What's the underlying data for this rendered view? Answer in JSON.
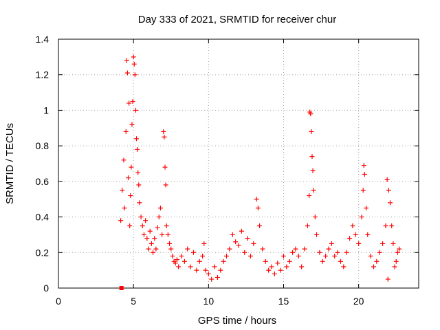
{
  "chart_data": {
    "type": "scatter",
    "title": "Day 333 of 2021, SRMTID for receiver chur",
    "xlabel": "GPS time / hours",
    "ylabel": "SRMTID / TECUs",
    "xlim": [
      0,
      24
    ],
    "ylim": [
      0,
      1.4
    ],
    "x_ticks": [
      0,
      5,
      10,
      15,
      20
    ],
    "x_tick_labels": [
      "0",
      "5",
      "10",
      "15",
      "20"
    ],
    "y_ticks": [
      0,
      0.2,
      0.4,
      0.6,
      0.8,
      1,
      1.2,
      1.4
    ],
    "y_tick_labels": [
      "0",
      "0.2",
      "0.4",
      "0.6",
      "0.8",
      "1",
      "1.2",
      "1.4"
    ],
    "grid": true,
    "marker": "+",
    "color": "#ff0000",
    "outlier": {
      "x": 4.2,
      "y": 0.0
    },
    "series": [
      {
        "name": "SRMTID",
        "points": [
          [
            4.15,
            0.38
          ],
          [
            4.25,
            0.55
          ],
          [
            4.35,
            0.72
          ],
          [
            4.4,
            0.45
          ],
          [
            4.5,
            0.88
          ],
          [
            4.55,
            1.28
          ],
          [
            4.6,
            1.21
          ],
          [
            4.65,
            0.62
          ],
          [
            4.7,
            1.04
          ],
          [
            4.75,
            0.35
          ],
          [
            4.8,
            0.52
          ],
          [
            4.85,
            0.68
          ],
          [
            4.9,
            0.92
          ],
          [
            4.95,
            1.05
          ],
          [
            5.0,
            1.3
          ],
          [
            5.05,
            1.26
          ],
          [
            5.1,
            1.2
          ],
          [
            5.15,
            1.0
          ],
          [
            5.2,
            0.84
          ],
          [
            5.25,
            0.78
          ],
          [
            5.3,
            0.65
          ],
          [
            5.35,
            0.58
          ],
          [
            5.4,
            0.48
          ],
          [
            5.5,
            0.4
          ],
          [
            5.6,
            0.35
          ],
          [
            5.7,
            0.3
          ],
          [
            5.8,
            0.38
          ],
          [
            5.9,
            0.28
          ],
          [
            6.0,
            0.22
          ],
          [
            6.1,
            0.32
          ],
          [
            6.2,
            0.25
          ],
          [
            6.3,
            0.2
          ],
          [
            6.4,
            0.28
          ],
          [
            6.5,
            0.22
          ],
          [
            6.6,
            0.34
          ],
          [
            6.7,
            0.4
          ],
          [
            6.8,
            0.45
          ],
          [
            6.9,
            0.3
          ],
          [
            7.0,
            0.88
          ],
          [
            7.05,
            0.85
          ],
          [
            7.1,
            0.68
          ],
          [
            7.15,
            0.58
          ],
          [
            7.2,
            0.35
          ],
          [
            7.3,
            0.3
          ],
          [
            7.4,
            0.25
          ],
          [
            7.5,
            0.22
          ],
          [
            7.6,
            0.18
          ],
          [
            7.7,
            0.15
          ],
          [
            7.8,
            0.14
          ],
          [
            7.9,
            0.16
          ],
          [
            8.0,
            0.12
          ],
          [
            8.2,
            0.18
          ],
          [
            8.4,
            0.15
          ],
          [
            8.6,
            0.22
          ],
          [
            8.8,
            0.12
          ],
          [
            9.0,
            0.2
          ],
          [
            9.2,
            0.1
          ],
          [
            9.4,
            0.15
          ],
          [
            9.6,
            0.18
          ],
          [
            9.7,
            0.25
          ],
          [
            9.8,
            0.1
          ],
          [
            10.0,
            0.08
          ],
          [
            10.2,
            0.05
          ],
          [
            10.4,
            0.12
          ],
          [
            10.6,
            0.06
          ],
          [
            10.8,
            0.1
          ],
          [
            11.0,
            0.15
          ],
          [
            11.2,
            0.18
          ],
          [
            11.4,
            0.22
          ],
          [
            11.6,
            0.3
          ],
          [
            11.8,
            0.26
          ],
          [
            12.0,
            0.24
          ],
          [
            12.2,
            0.32
          ],
          [
            12.4,
            0.2
          ],
          [
            12.6,
            0.28
          ],
          [
            12.8,
            0.18
          ],
          [
            13.0,
            0.25
          ],
          [
            13.2,
            0.5
          ],
          [
            13.3,
            0.45
          ],
          [
            13.4,
            0.35
          ],
          [
            13.6,
            0.22
          ],
          [
            13.8,
            0.15
          ],
          [
            14.0,
            0.1
          ],
          [
            14.2,
            0.12
          ],
          [
            14.4,
            0.08
          ],
          [
            14.6,
            0.14
          ],
          [
            14.8,
            0.1
          ],
          [
            15.0,
            0.18
          ],
          [
            15.2,
            0.12
          ],
          [
            15.4,
            0.15
          ],
          [
            15.6,
            0.2
          ],
          [
            15.8,
            0.22
          ],
          [
            16.0,
            0.18
          ],
          [
            16.2,
            0.12
          ],
          [
            16.4,
            0.22
          ],
          [
            16.6,
            0.35
          ],
          [
            16.7,
            0.52
          ],
          [
            16.75,
            0.99
          ],
          [
            16.8,
            0.98
          ],
          [
            16.85,
            0.88
          ],
          [
            16.9,
            0.74
          ],
          [
            16.95,
            0.66
          ],
          [
            17.0,
            0.55
          ],
          [
            17.1,
            0.4
          ],
          [
            17.2,
            0.3
          ],
          [
            17.4,
            0.2
          ],
          [
            17.6,
            0.15
          ],
          [
            17.8,
            0.18
          ],
          [
            18.0,
            0.22
          ],
          [
            18.2,
            0.25
          ],
          [
            18.4,
            0.18
          ],
          [
            18.6,
            0.2
          ],
          [
            18.8,
            0.15
          ],
          [
            19.0,
            0.12
          ],
          [
            19.2,
            0.2
          ],
          [
            19.4,
            0.28
          ],
          [
            19.6,
            0.35
          ],
          [
            19.8,
            0.3
          ],
          [
            20.0,
            0.25
          ],
          [
            20.2,
            0.4
          ],
          [
            20.3,
            0.55
          ],
          [
            20.35,
            0.69
          ],
          [
            20.4,
            0.64
          ],
          [
            20.5,
            0.45
          ],
          [
            20.6,
            0.3
          ],
          [
            20.8,
            0.18
          ],
          [
            21.0,
            0.12
          ],
          [
            21.2,
            0.15
          ],
          [
            21.4,
            0.2
          ],
          [
            21.6,
            0.25
          ],
          [
            21.8,
            0.35
          ],
          [
            21.9,
            0.61
          ],
          [
            21.95,
            0.05
          ],
          [
            22.0,
            0.55
          ],
          [
            22.1,
            0.48
          ],
          [
            22.2,
            0.35
          ],
          [
            22.3,
            0.25
          ],
          [
            22.4,
            0.12
          ],
          [
            22.5,
            0.15
          ],
          [
            22.6,
            0.2
          ],
          [
            22.7,
            0.22
          ]
        ]
      }
    ]
  }
}
